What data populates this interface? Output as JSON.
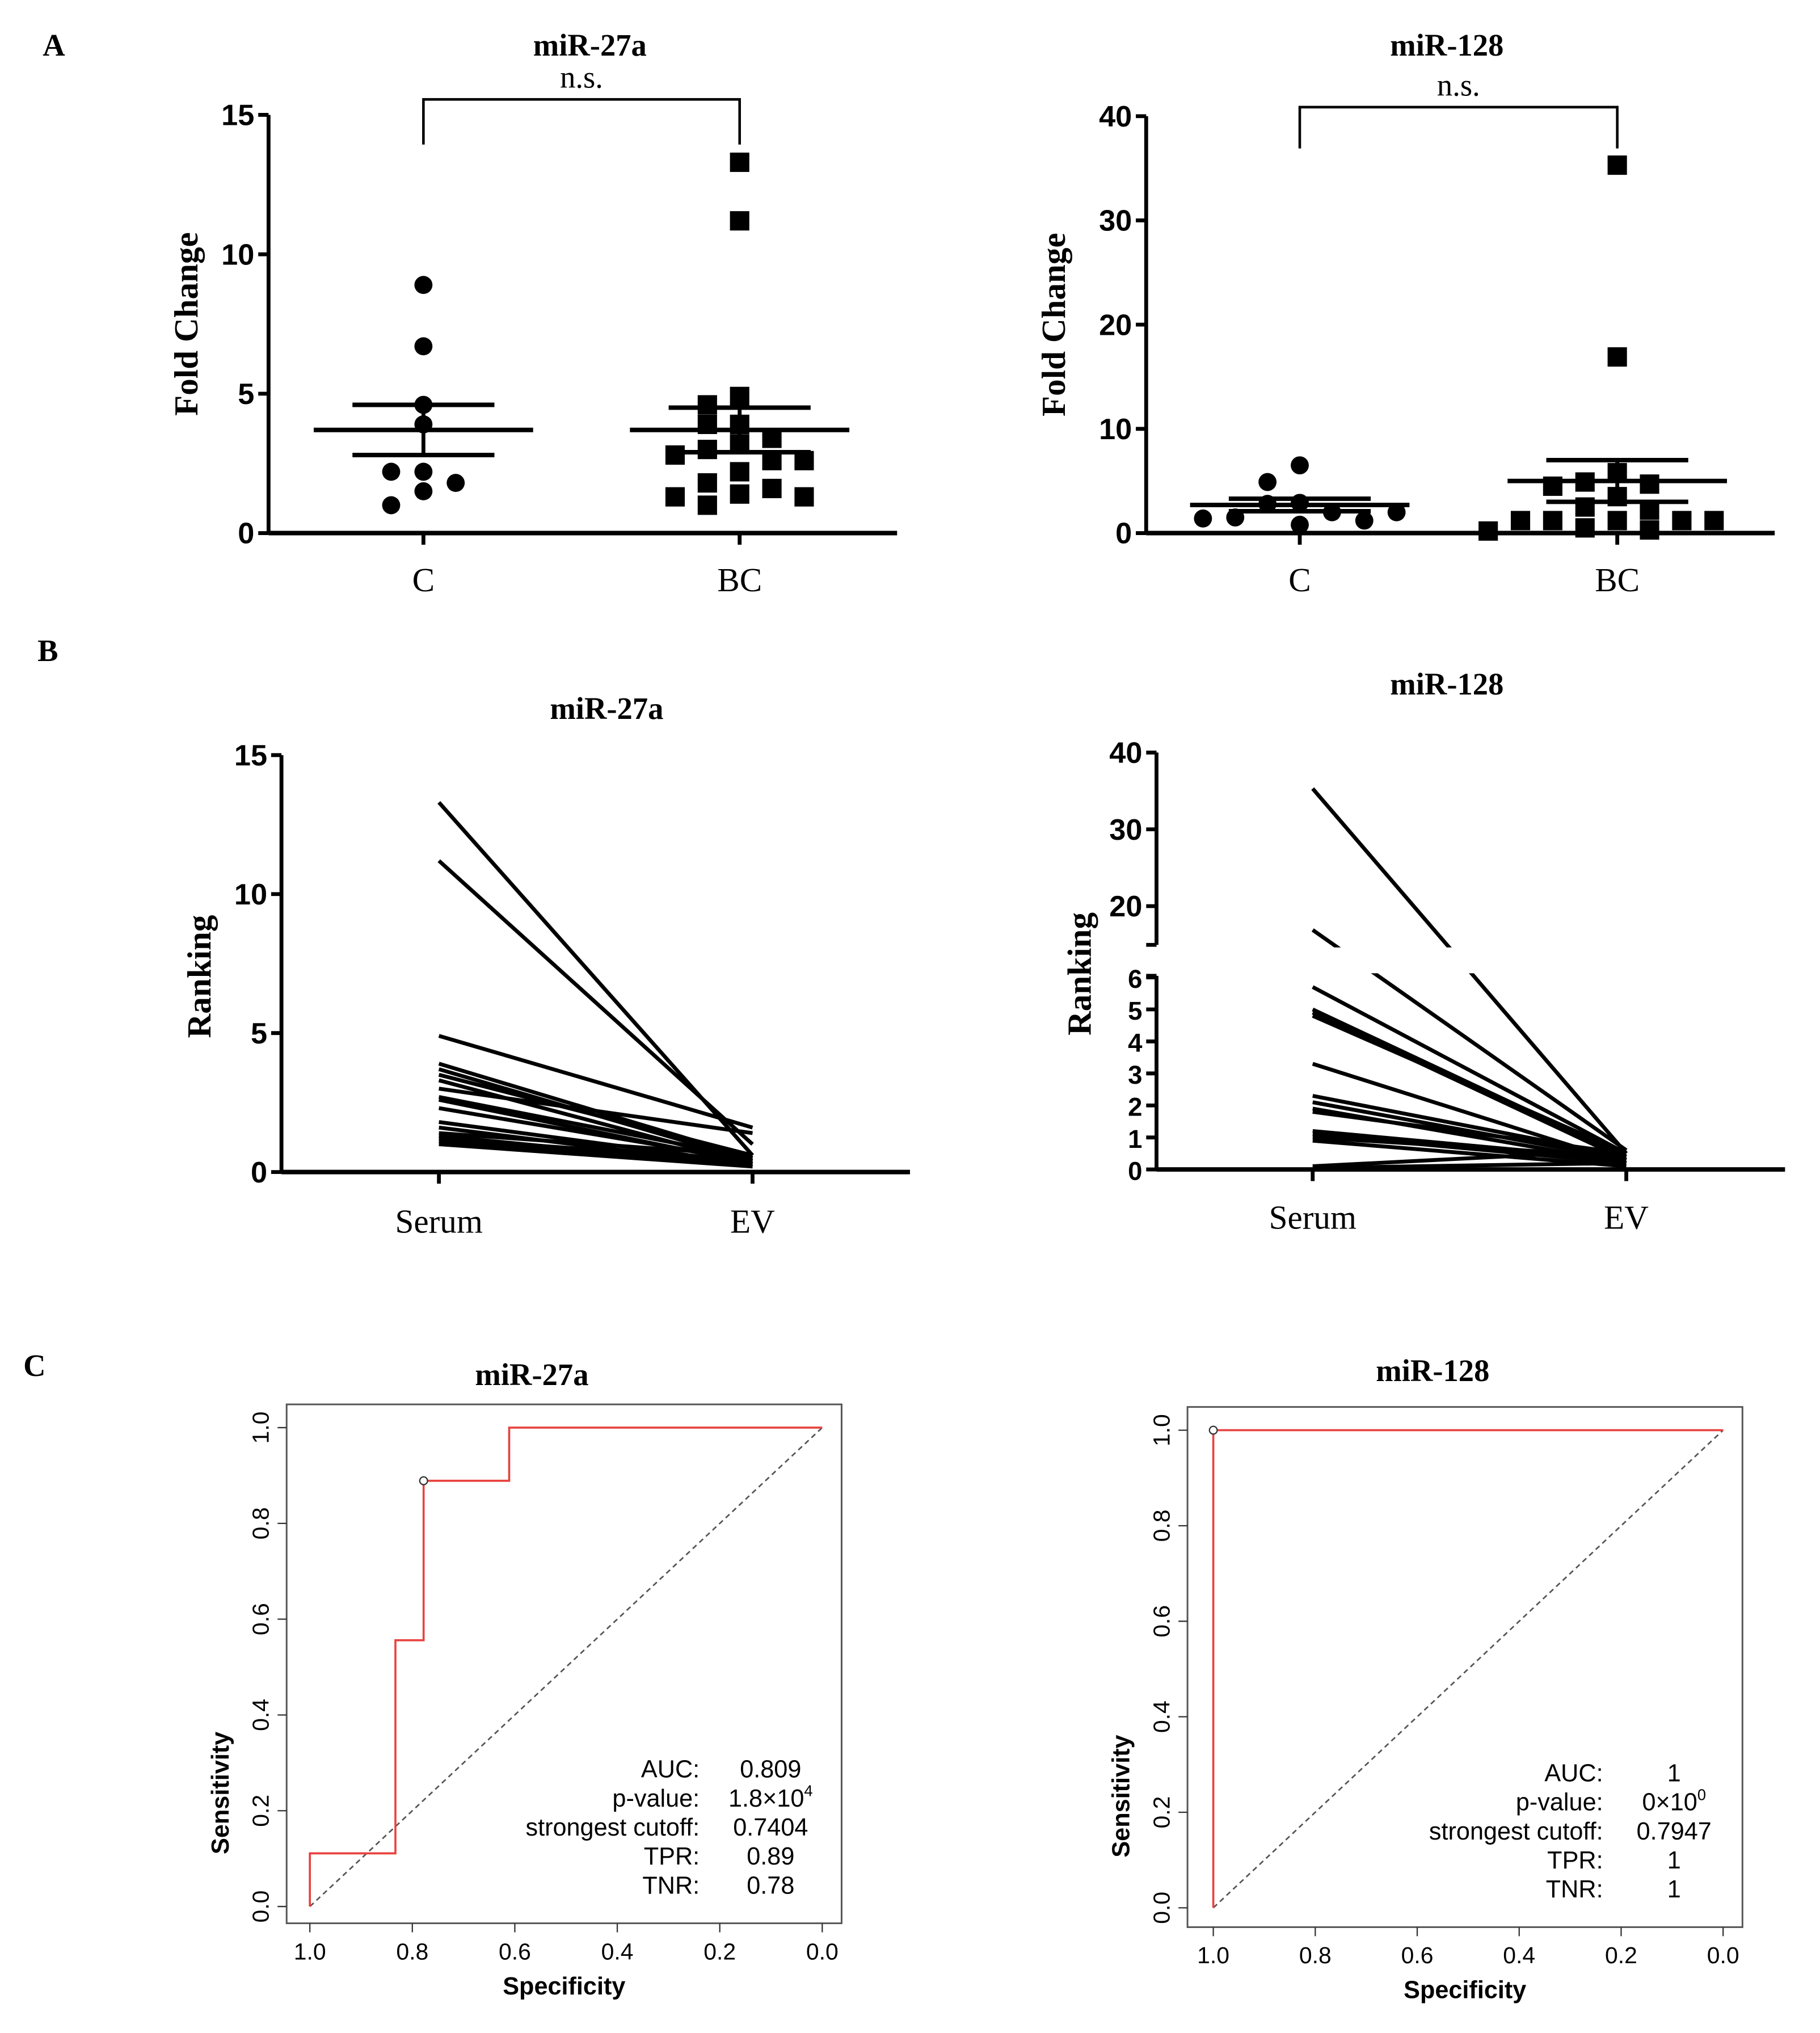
{
  "panel_labels": [
    "A",
    "B",
    "C"
  ],
  "chart_data": [
    {
      "type": "scatter",
      "panel": "A",
      "title": "miR-27a",
      "ylabel": "Fold Change",
      "ylim": [
        0,
        15
      ],
      "yticks": [
        "0",
        "5",
        "10",
        "15"
      ],
      "ytick_values": [
        0,
        5,
        10,
        15
      ],
      "categories": [
        "C",
        "BC"
      ],
      "significance": "n.s.",
      "series": [
        {
          "name": "C",
          "marker": "circle",
          "values": [
            8.9,
            6.7,
            4.6,
            3.9,
            2.2,
            2.2,
            1.8,
            1.5,
            1.0
          ],
          "mean": 3.7,
          "sem_upper": 4.6,
          "sem_lower": 2.8
        },
        {
          "name": "BC",
          "marker": "square",
          "values": [
            13.3,
            11.2,
            4.9,
            4.6,
            3.9,
            3.9,
            3.4,
            3.2,
            3.0,
            2.8,
            2.6,
            2.6,
            2.2,
            1.8,
            1.6,
            1.4,
            1.3,
            1.3,
            1.0
          ],
          "mean": 3.7,
          "sem_upper": 4.5,
          "sem_lower": 2.9
        }
      ]
    },
    {
      "type": "scatter",
      "panel": "A",
      "title": "miR-128",
      "ylabel": "Fold Change",
      "ylim": [
        0,
        40
      ],
      "yticks": [
        "0",
        "10",
        "20",
        "30",
        "40"
      ],
      "ytick_values": [
        0,
        10,
        20,
        30,
        40
      ],
      "categories": [
        "C",
        "BC"
      ],
      "significance": "n.s.",
      "series": [
        {
          "name": "C",
          "marker": "circle",
          "values": [
            6.5,
            4.9,
            2.9,
            2.8,
            2.0,
            1.5,
            1.2,
            0.8,
            1.4,
            2.0
          ],
          "mean": 2.7,
          "sem_upper": 3.3,
          "sem_lower": 2.1
        },
        {
          "name": "BC",
          "marker": "square",
          "values": [
            35.3,
            16.9,
            5.8,
            4.9,
            4.7,
            4.5,
            3.5,
            2.5,
            2.2,
            1.2,
            1.2,
            1.2,
            1.2,
            1.2,
            0.5,
            0.3,
            0.2
          ],
          "mean": 5.0,
          "sem_upper": 7.0,
          "sem_lower": 3.0
        }
      ]
    },
    {
      "type": "line",
      "panel": "B",
      "title": "miR-27a",
      "ylabel": "Ranking",
      "ylim": [
        0,
        15
      ],
      "yticks": [
        "0",
        "5",
        "10",
        "15"
      ],
      "ytick_values": [
        0,
        5,
        10,
        15
      ],
      "categories": [
        "Serum",
        "EV"
      ],
      "pairs": [
        [
          13.3,
          0.6
        ],
        [
          11.2,
          1.0
        ],
        [
          4.9,
          1.6
        ],
        [
          3.9,
          0.5
        ],
        [
          3.7,
          0.4
        ],
        [
          3.5,
          0.6
        ],
        [
          3.3,
          0.3
        ],
        [
          3.0,
          1.4
        ],
        [
          2.7,
          0.5
        ],
        [
          2.6,
          0.3
        ],
        [
          2.3,
          0.4
        ],
        [
          1.8,
          0.3
        ],
        [
          1.6,
          0.2
        ],
        [
          1.4,
          0.6
        ],
        [
          1.3,
          0.2
        ],
        [
          1.2,
          0.4
        ],
        [
          1.1,
          0.3
        ],
        [
          1.0,
          0.2
        ]
      ]
    },
    {
      "type": "line",
      "panel": "B",
      "title": "miR-128",
      "ylabel": "Ranking",
      "ylim": [
        0,
        40
      ],
      "axis_break": [
        6,
        15
      ],
      "yticks": [
        "0",
        "1",
        "2",
        "3",
        "4",
        "5",
        "6",
        "20",
        "30",
        "40"
      ],
      "ytick_values": [
        0,
        1,
        2,
        3,
        4,
        5,
        6,
        20,
        30,
        40
      ],
      "categories": [
        "Serum",
        "EV"
      ],
      "pairs": [
        [
          35.3,
          0.5
        ],
        [
          16.9,
          0.6
        ],
        [
          5.7,
          0.5
        ],
        [
          5.0,
          0.4
        ],
        [
          4.9,
          0.3
        ],
        [
          4.8,
          0.5
        ],
        [
          3.3,
          0.2
        ],
        [
          2.3,
          0.4
        ],
        [
          2.1,
          0.3
        ],
        [
          1.9,
          0.2
        ],
        [
          1.8,
          0.5
        ],
        [
          1.2,
          0.3
        ],
        [
          1.1,
          0.2
        ],
        [
          1.0,
          0.4
        ],
        [
          0.9,
          0.1
        ],
        [
          0.1,
          0.6
        ],
        [
          0.05,
          0.2
        ]
      ]
    },
    {
      "type": "line",
      "subtype": "roc",
      "panel": "C",
      "title": "miR-27a",
      "xlabel": "Specificity",
      "ylabel": "Sensitivity",
      "xlim": [
        1.0,
        0.0
      ],
      "ylim": [
        0.0,
        1.0
      ],
      "xticks": [
        "1.0",
        "0.8",
        "0.6",
        "0.4",
        "0.2",
        "0.0"
      ],
      "xtick_values": [
        1.0,
        0.8,
        0.6,
        0.4,
        0.2,
        0.0
      ],
      "yticks": [
        "0.0",
        "0.2",
        "0.4",
        "0.6",
        "0.8",
        "1.0"
      ],
      "ytick_values": [
        0.0,
        0.2,
        0.4,
        0.6,
        0.8,
        1.0
      ],
      "roc_color": "#e8423f",
      "points": [
        [
          1.0,
          0.0
        ],
        [
          1.0,
          0.111
        ],
        [
          0.833,
          0.111
        ],
        [
          0.833,
          0.556
        ],
        [
          0.778,
          0.556
        ],
        [
          0.778,
          0.889
        ],
        [
          0.611,
          0.889
        ],
        [
          0.611,
          1.0
        ],
        [
          0.0,
          1.0
        ]
      ],
      "cutoff_point": [
        0.778,
        0.889
      ],
      "stats": [
        {
          "label": "AUC:",
          "value": "0.809"
        },
        {
          "label": "p-value:",
          "value": "1.8×10",
          "exp": "4"
        },
        {
          "label": "strongest cutoff:",
          "value": "0.7404"
        },
        {
          "label": "TPR:",
          "value": "0.89"
        },
        {
          "label": "TNR:",
          "value": "0.78"
        }
      ]
    },
    {
      "type": "line",
      "subtype": "roc",
      "panel": "C",
      "title": "miR-128",
      "xlabel": "Specificity",
      "ylabel": "Sensitivity",
      "xlim": [
        1.0,
        0.0
      ],
      "ylim": [
        0.0,
        1.0
      ],
      "xticks": [
        "1.0",
        "0.8",
        "0.6",
        "0.4",
        "0.2",
        "0.0"
      ],
      "xtick_values": [
        1.0,
        0.8,
        0.6,
        0.4,
        0.2,
        0.0
      ],
      "yticks": [
        "0.0",
        "0.2",
        "0.4",
        "0.6",
        "0.8",
        "1.0"
      ],
      "ytick_values": [
        0.0,
        0.2,
        0.4,
        0.6,
        0.8,
        1.0
      ],
      "roc_color": "#e8423f",
      "points": [
        [
          1.0,
          0.0
        ],
        [
          1.0,
          1.0
        ],
        [
          0.0,
          1.0
        ]
      ],
      "cutoff_point": [
        1.0,
        1.0
      ],
      "stats": [
        {
          "label": "AUC:",
          "value": "1"
        },
        {
          "label": "p-value:",
          "value": "0×10",
          "exp": "0"
        },
        {
          "label": "strongest cutoff:",
          "value": "0.7947"
        },
        {
          "label": "TPR:",
          "value": "1"
        },
        {
          "label": "TNR:",
          "value": "1"
        }
      ]
    }
  ]
}
